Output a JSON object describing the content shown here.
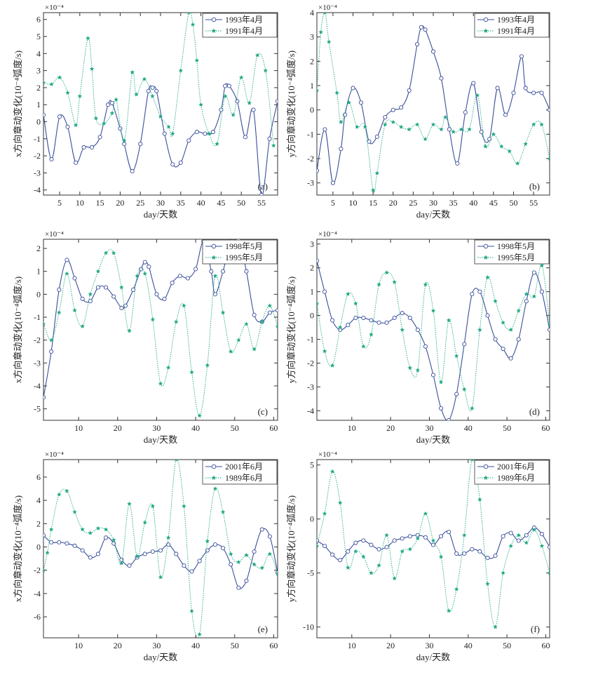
{
  "colors": {
    "series_a": "#3b4f9a",
    "series_b": "#1fa884",
    "frame": "#333333",
    "background": "#ffffff"
  },
  "chart_data": [
    {
      "id": "a",
      "type": "line",
      "panel_label": "(a)",
      "xlabel": "day/天数",
      "ylabel": "x方向章动变化(10⁻⁴弧度/s)",
      "exponent_label": "×10⁻⁴",
      "xlim": [
        1,
        59
      ],
      "ylim": [
        -4.3,
        6.4
      ],
      "xticks": [
        5,
        10,
        15,
        20,
        25,
        30,
        35,
        40,
        45,
        50,
        55
      ],
      "yticks": [
        -4,
        -3,
        -2,
        -1,
        0,
        1,
        2,
        3,
        4,
        5,
        6
      ],
      "legend_position": "top-right",
      "series": [
        {
          "name": "1993年4月",
          "style": "circle",
          "x": [
            1,
            3,
            5,
            7,
            9,
            11,
            13,
            15,
            17,
            18,
            20,
            21,
            23,
            25,
            27,
            28,
            29,
            31,
            33,
            35,
            37,
            39,
            41,
            43,
            45,
            46,
            47,
            49,
            51,
            53,
            55,
            57,
            59
          ],
          "values": [
            0.4,
            -2.2,
            0.3,
            -0.3,
            -2.4,
            -1.5,
            -1.5,
            -0.9,
            1.0,
            1.1,
            -0.4,
            -1.3,
            -2.9,
            -1.3,
            1.8,
            2.0,
            1.8,
            -0.7,
            -2.5,
            -2.4,
            -1.1,
            -0.6,
            -0.7,
            -0.6,
            0.7,
            2.1,
            2.1,
            1.2,
            -0.9,
            0.7,
            -4.3,
            -1.0,
            1.2
          ]
        },
        {
          "name": "1991年4月",
          "style": "star",
          "x": [
            1,
            3,
            5,
            7,
            9,
            10,
            12,
            13,
            14,
            16,
            18,
            19,
            21,
            23,
            24,
            26,
            28,
            30,
            32,
            33,
            35,
            37,
            38,
            39,
            40,
            42,
            44,
            46,
            48,
            50,
            52,
            54,
            56,
            58
          ],
          "values": [
            2.3,
            2.2,
            2.6,
            1.7,
            -0.2,
            1.5,
            4.9,
            3.1,
            0.2,
            -0.1,
            0.5,
            1.3,
            -1.1,
            2.9,
            1.6,
            2.5,
            1.5,
            0.3,
            -0.3,
            -0.7,
            3.0,
            6.4,
            5.7,
            3.6,
            1.0,
            -0.7,
            -1.3,
            1.5,
            0.4,
            2.6,
            1.1,
            3.9,
            3.0,
            -1.4
          ]
        }
      ]
    },
    {
      "id": "b",
      "type": "line",
      "panel_label": "(b)",
      "xlabel": "day/天数",
      "ylabel": "y方向章动变化(10⁻⁴弧度/s)",
      "exponent_label": "×10⁻⁴",
      "xlim": [
        1,
        59
      ],
      "ylim": [
        -3.5,
        4
      ],
      "xticks": [
        5,
        10,
        15,
        20,
        25,
        30,
        35,
        40,
        45,
        50,
        55
      ],
      "yticks": [
        -3,
        -2,
        -1,
        0,
        1,
        2,
        3,
        4
      ],
      "legend_position": "top-right",
      "series": [
        {
          "name": "1993年4月",
          "style": "circle",
          "x": [
            1,
            3,
            5,
            7,
            8,
            10,
            12,
            14,
            16,
            18,
            20,
            22,
            24,
            26,
            27,
            28,
            30,
            32,
            34,
            36,
            38,
            40,
            42,
            44,
            46,
            48,
            50,
            52,
            53,
            55,
            57,
            59
          ],
          "values": [
            -2.5,
            -0.8,
            -3.0,
            -1.6,
            -0.2,
            0.9,
            0.3,
            -1.3,
            -1.1,
            -0.3,
            0.0,
            0.1,
            0.8,
            2.7,
            3.4,
            3.3,
            2.4,
            1.3,
            -0.8,
            -2.2,
            -0.1,
            1.1,
            -0.9,
            -1.2,
            0.9,
            -0.2,
            0.7,
            2.2,
            0.9,
            0.7,
            0.7,
            0.0
          ]
        },
        {
          "name": "1991年4月",
          "style": "star",
          "x": [
            1,
            2,
            3,
            4,
            6,
            7,
            9,
            11,
            13,
            15,
            16,
            18,
            20,
            22,
            24,
            26,
            28,
            30,
            32,
            33,
            35,
            37,
            39,
            41,
            43,
            45,
            47,
            49,
            51,
            53,
            55,
            57,
            59
          ],
          "values": [
            0.8,
            3.2,
            4.0,
            2.8,
            0.7,
            -0.5,
            0.3,
            -0.7,
            -0.7,
            -3.3,
            -2.6,
            -0.6,
            -0.5,
            -0.7,
            -0.8,
            -0.6,
            -1.2,
            -0.6,
            -0.8,
            -0.3,
            -0.9,
            -0.8,
            -0.8,
            0.6,
            -1.5,
            -1.0,
            -1.5,
            -1.7,
            -2.2,
            -1.4,
            -0.6,
            -0.6,
            -2.0
          ]
        }
      ]
    },
    {
      "id": "c",
      "type": "line",
      "panel_label": "(c)",
      "xlabel": "day/天数",
      "ylabel": "x方向章动变化(10⁻⁴弧度/s)",
      "exponent_label": "×10⁻⁴",
      "xlim": [
        1,
        61
      ],
      "ylim": [
        -5.5,
        2.4
      ],
      "xticks": [
        10,
        20,
        30,
        40,
        50,
        60
      ],
      "yticks": [
        -5,
        -4,
        -3,
        -2,
        -1,
        0,
        1,
        2
      ],
      "legend_position": "top-right",
      "series": [
        {
          "name": "1998年5月",
          "style": "circle",
          "x": [
            1,
            3,
            5,
            7,
            9,
            11,
            13,
            15,
            17,
            19,
            21,
            22,
            24,
            26,
            27,
            28,
            30,
            32,
            34,
            36,
            38,
            40,
            42,
            44,
            45,
            47,
            49,
            51,
            53,
            55,
            57,
            59,
            61
          ],
          "values": [
            -4.5,
            -2.5,
            0.2,
            1.5,
            0.7,
            -0.2,
            -0.3,
            0.3,
            0.3,
            -0.1,
            -0.6,
            -0.5,
            0.2,
            1.1,
            1.4,
            1.2,
            0.0,
            -0.2,
            0.5,
            0.8,
            0.7,
            1.1,
            2.3,
            1.0,
            0.0,
            1.0,
            2.3,
            2.4,
            1.0,
            -0.9,
            -1.2,
            -0.8,
            -0.7
          ]
        },
        {
          "name": "1995年5月",
          "style": "star",
          "x": [
            1,
            3,
            5,
            7,
            9,
            11,
            13,
            15,
            17,
            19,
            21,
            23,
            25,
            27,
            29,
            31,
            33,
            35,
            37,
            39,
            41,
            43,
            45,
            47,
            49,
            51,
            53,
            55,
            57,
            59,
            61
          ],
          "values": [
            -1.3,
            -2.0,
            -0.8,
            0.9,
            -0.7,
            -1.4,
            0.0,
            1.0,
            1.8,
            1.8,
            0.3,
            -1.6,
            0.8,
            0.9,
            -1.1,
            -3.9,
            -3.2,
            -1.2,
            -0.5,
            -3.4,
            -5.3,
            -3.1,
            0.8,
            -0.8,
            -2.5,
            -2.0,
            -1.3,
            -2.4,
            -1.2,
            -0.5,
            -1.4
          ]
        }
      ]
    },
    {
      "id": "d",
      "type": "line",
      "panel_label": "(d)",
      "xlabel": "day/天数",
      "ylabel": "y方向章动变化(10⁻⁴弧度/s)",
      "exponent_label": "×10⁻⁴",
      "xlim": [
        1,
        61
      ],
      "ylim": [
        -4.4,
        3.2
      ],
      "xticks": [
        10,
        20,
        30,
        40,
        50,
        60
      ],
      "yticks": [
        -4,
        -3,
        -2,
        -1,
        0,
        1,
        2,
        3
      ],
      "legend_position": "top-right",
      "series": [
        {
          "name": "1998年5月",
          "style": "circle",
          "x": [
            1,
            3,
            5,
            7,
            9,
            11,
            13,
            15,
            17,
            19,
            21,
            23,
            25,
            27,
            29,
            31,
            33,
            35,
            37,
            39,
            41,
            43,
            45,
            47,
            49,
            51,
            53,
            55,
            57,
            59,
            61
          ],
          "values": [
            2.3,
            1.0,
            -0.2,
            -0.6,
            -0.4,
            -0.1,
            -0.1,
            -0.2,
            -0.3,
            -0.3,
            -0.1,
            0.1,
            -0.1,
            -0.6,
            -1.3,
            -2.5,
            -3.9,
            -4.4,
            -3.3,
            -1.2,
            0.9,
            1.0,
            0.0,
            -1.0,
            -1.4,
            -1.8,
            -1.0,
            0.6,
            1.8,
            1.0,
            -0.6
          ]
        },
        {
          "name": "1995年5月",
          "style": "star",
          "x": [
            1,
            3,
            5,
            7,
            9,
            11,
            13,
            15,
            17,
            19,
            21,
            23,
            25,
            27,
            29,
            31,
            33,
            35,
            37,
            39,
            41,
            43,
            45,
            47,
            49,
            51,
            53,
            55,
            57,
            59,
            61
          ],
          "values": [
            0.5,
            -1.5,
            -2.1,
            -0.5,
            0.9,
            0.5,
            -1.3,
            -0.8,
            1.3,
            1.8,
            1.4,
            -0.6,
            -2.2,
            -2.3,
            1.3,
            0.2,
            -2.8,
            -0.2,
            -1.7,
            -3.1,
            -3.9,
            -0.6,
            1.6,
            0.6,
            -0.3,
            -0.6,
            0.2,
            0.9,
            0.8,
            2.1,
            -0.4
          ]
        }
      ]
    },
    {
      "id": "e",
      "type": "line",
      "panel_label": "(e)",
      "xlabel": "day/天数",
      "ylabel": "x方向章动变化(10⁻⁴弧度/s)",
      "exponent_label": "×10⁻⁴",
      "xlim": [
        1,
        61
      ],
      "ylim": [
        -7.8,
        7.5
      ],
      "xticks": [
        10,
        20,
        30,
        40,
        50,
        60
      ],
      "yticks": [
        -6,
        -4,
        -2,
        0,
        2,
        4,
        6
      ],
      "legend_position": "top-right",
      "series": [
        {
          "name": "2001年6月",
          "style": "circle",
          "x": [
            1,
            3,
            5,
            7,
            9,
            11,
            13,
            15,
            17,
            19,
            21,
            23,
            25,
            27,
            29,
            31,
            33,
            35,
            37,
            39,
            41,
            43,
            45,
            47,
            49,
            51,
            53,
            55,
            57,
            59,
            61
          ],
          "values": [
            1.0,
            0.4,
            0.4,
            0.3,
            0.1,
            -0.3,
            -0.9,
            -0.6,
            0.8,
            0.3,
            -1.1,
            -1.6,
            -0.9,
            -0.6,
            -0.4,
            -0.3,
            0.2,
            -0.6,
            -1.6,
            -2.1,
            -1.2,
            -0.3,
            0.2,
            -0.1,
            -1.5,
            -3.5,
            -2.9,
            -0.4,
            1.5,
            0.9,
            -2.2
          ]
        },
        {
          "name": "1989年6月",
          "style": "star",
          "x": [
            1,
            2,
            3,
            5,
            7,
            9,
            11,
            13,
            15,
            17,
            19,
            21,
            23,
            25,
            27,
            29,
            31,
            33,
            35,
            37,
            39,
            41,
            43,
            45,
            47,
            49,
            51,
            53,
            55,
            57,
            59,
            61
          ],
          "values": [
            -2.0,
            -0.5,
            1.5,
            4.5,
            4.8,
            3.0,
            1.5,
            1.2,
            1.6,
            1.5,
            0.6,
            -1.4,
            3.7,
            -0.8,
            2.1,
            3.5,
            -2.6,
            0.8,
            7.5,
            3.5,
            -5.5,
            -7.5,
            0.5,
            5.0,
            3.0,
            -0.6,
            -1.3,
            -0.7,
            -1.5,
            -1.8,
            -0.6,
            -2.3
          ]
        }
      ]
    },
    {
      "id": "f",
      "type": "line",
      "panel_label": "(f)",
      "xlabel": "day/天数",
      "ylabel": "y方向章动变化(10⁻⁴弧度/s)",
      "exponent_label": "×10⁻⁴",
      "xlim": [
        1,
        61
      ],
      "ylim": [
        -11,
        5.5
      ],
      "xticks": [
        10,
        20,
        30,
        40,
        50,
        60
      ],
      "yticks": [
        -10,
        -5,
        0,
        5
      ],
      "legend_position": "top-right",
      "series": [
        {
          "name": "2001年6月",
          "style": "circle",
          "x": [
            1,
            3,
            5,
            7,
            9,
            11,
            13,
            15,
            17,
            19,
            21,
            23,
            25,
            27,
            29,
            31,
            33,
            35,
            37,
            39,
            41,
            43,
            45,
            47,
            49,
            51,
            53,
            55,
            57,
            59,
            61
          ],
          "values": [
            -2.0,
            -2.5,
            -3.3,
            -3.8,
            -3.0,
            -2.2,
            -2.0,
            -2.4,
            -2.8,
            -2.6,
            -2.0,
            -1.8,
            -1.6,
            -1.5,
            -1.7,
            -2.4,
            -1.6,
            -1.2,
            -3.2,
            -3.2,
            -2.8,
            -3.0,
            -3.6,
            -3.4,
            -1.6,
            -1.3,
            -2.0,
            -1.5,
            -0.8,
            -1.4,
            -2.6
          ]
        },
        {
          "name": "1989年6月",
          "style": "star",
          "x": [
            1,
            3,
            5,
            7,
            9,
            11,
            13,
            15,
            17,
            19,
            21,
            23,
            25,
            27,
            29,
            31,
            33,
            35,
            37,
            39,
            41,
            43,
            45,
            47,
            49,
            51,
            53,
            55,
            57,
            59,
            61
          ],
          "values": [
            -2.5,
            0.5,
            4.4,
            1.5,
            -4.5,
            -3.0,
            -3.5,
            -5.0,
            -4.3,
            -1.5,
            -5.5,
            -3.0,
            -2.8,
            -1.8,
            0.5,
            -2.0,
            -3.5,
            -8.5,
            -6.5,
            -1.5,
            5.5,
            1.8,
            -6.0,
            -10.0,
            -5.0,
            -2.5,
            -1.5,
            -2.2,
            -1.0,
            -2.5,
            -5.0
          ]
        }
      ]
    }
  ]
}
